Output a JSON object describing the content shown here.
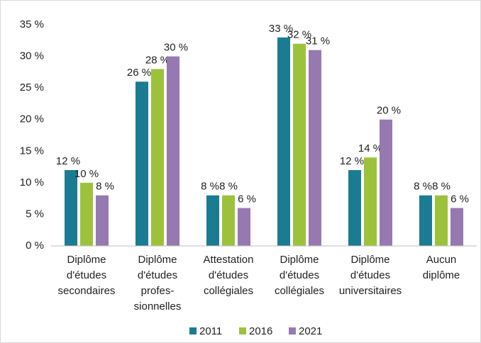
{
  "chart_data": {
    "type": "bar",
    "categories": [
      [
        "Diplôme",
        "d'études",
        "secondaires"
      ],
      [
        "Diplôme",
        "d'études",
        "profes-",
        "sionnelles"
      ],
      [
        "Attestation",
        "d'études",
        "collégiales"
      ],
      [
        "Diplôme",
        "d'études",
        "collégiales"
      ],
      [
        "Diplôme",
        "d'études",
        "universitaires"
      ],
      [
        "Aucun",
        "diplôme"
      ]
    ],
    "series": [
      {
        "name": "2011",
        "color": "#1b7b93",
        "values": [
          12,
          26,
          8,
          33,
          12,
          8
        ],
        "value_labels": [
          "12 %",
          "26 %",
          "8 %",
          "33 %",
          "12 %",
          "8 %"
        ]
      },
      {
        "name": "2016",
        "color": "#9cc23c",
        "values": [
          10,
          28,
          8,
          32,
          14,
          8
        ],
        "value_labels": [
          "10 %",
          "28 %",
          "8 %",
          "32 %",
          "14 %",
          "8 %"
        ]
      },
      {
        "name": "2021",
        "color": "#9779b1",
        "values": [
          8,
          30,
          6,
          31,
          20,
          6
        ],
        "value_labels": [
          "8 %",
          "30 %",
          "6 %",
          "31 %",
          "20 %",
          "6 %"
        ]
      }
    ],
    "ylim": [
      0,
      35
    ],
    "yticks": [
      {
        "value": 0,
        "label": "0 %"
      },
      {
        "value": 5,
        "label": "5 %"
      },
      {
        "value": 10,
        "label": "10 %"
      },
      {
        "value": 15,
        "label": "15 %"
      },
      {
        "value": 20,
        "label": "20 %"
      },
      {
        "value": 25,
        "label": "25 %"
      },
      {
        "value": 30,
        "label": "30 %"
      },
      {
        "value": 35,
        "label": "35 %"
      }
    ],
    "grid": false,
    "legend": "bottom"
  }
}
